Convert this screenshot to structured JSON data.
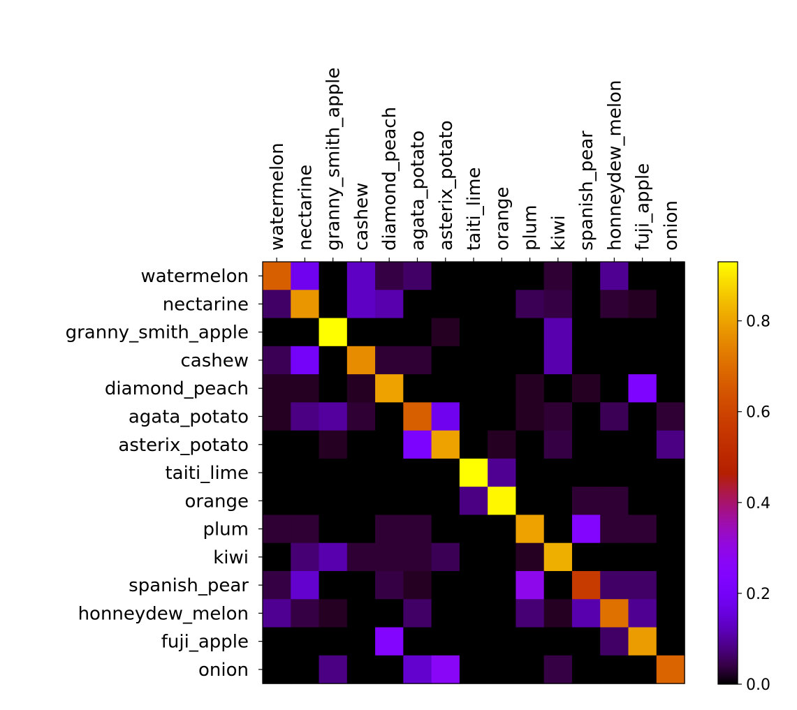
{
  "chart_data": {
    "type": "heatmap",
    "title": "",
    "xlabel": "",
    "ylabel": "",
    "x_labels": [
      "watermelon",
      "nectarine",
      "granny_smith_apple",
      "cashew",
      "diamond_peach",
      "agata_potato",
      "asterix_potato",
      "taiti_lime",
      "orange",
      "plum",
      "kiwi",
      "spanish_pear",
      "honneydew_melon",
      "fuji_apple",
      "onion"
    ],
    "y_labels": [
      "watermelon",
      "nectarine",
      "granny_smith_apple",
      "cashew",
      "diamond_peach",
      "agata_potato",
      "asterix_potato",
      "taiti_lime",
      "orange",
      "plum",
      "kiwi",
      "spanish_pear",
      "honneydew_melon",
      "fuji_apple",
      "onion"
    ],
    "x_axis_position": "top",
    "colormap": "gnuplot",
    "colorbar": {
      "min": 0.0,
      "max": 0.93,
      "ticks": [
        0.0,
        0.2,
        0.4,
        0.6,
        0.8
      ],
      "tick_labels": [
        "0.0",
        "0.2",
        "0.4",
        "0.6",
        "0.8"
      ]
    },
    "matrix": [
      [
        0.67,
        0.18,
        0.0,
        0.13,
        0.04,
        0.06,
        0.0,
        0.0,
        0.0,
        0.0,
        0.03,
        0.0,
        0.09,
        0.0,
        0.0
      ],
      [
        0.06,
        0.78,
        0.0,
        0.13,
        0.11,
        0.0,
        0.0,
        0.0,
        0.0,
        0.05,
        0.04,
        0.0,
        0.03,
        0.02,
        0.0
      ],
      [
        0.0,
        0.0,
        0.93,
        0.0,
        0.0,
        0.0,
        0.02,
        0.0,
        0.0,
        0.0,
        0.11,
        0.0,
        0.0,
        0.0,
        0.0
      ],
      [
        0.05,
        0.2,
        0.0,
        0.76,
        0.03,
        0.03,
        0.0,
        0.0,
        0.0,
        0.0,
        0.11,
        0.0,
        0.0,
        0.0,
        0.0
      ],
      [
        0.02,
        0.02,
        0.0,
        0.02,
        0.8,
        0.0,
        0.0,
        0.0,
        0.0,
        0.02,
        0.0,
        0.02,
        0.0,
        0.23,
        0.0
      ],
      [
        0.02,
        0.08,
        0.1,
        0.03,
        0.0,
        0.67,
        0.18,
        0.0,
        0.0,
        0.02,
        0.03,
        0.0,
        0.05,
        0.0,
        0.03
      ],
      [
        0.0,
        0.0,
        0.02,
        0.0,
        0.0,
        0.22,
        0.8,
        0.0,
        0.02,
        0.0,
        0.04,
        0.0,
        0.0,
        0.0,
        0.08
      ],
      [
        0.0,
        0.0,
        0.0,
        0.0,
        0.0,
        0.0,
        0.0,
        0.93,
        0.09,
        0.0,
        0.0,
        0.0,
        0.0,
        0.0,
        0.0
      ],
      [
        0.0,
        0.0,
        0.0,
        0.0,
        0.0,
        0.0,
        0.0,
        0.08,
        0.92,
        0.0,
        0.0,
        0.03,
        0.03,
        0.0,
        0.0
      ],
      [
        0.03,
        0.03,
        0.0,
        0.0,
        0.03,
        0.03,
        0.0,
        0.0,
        0.0,
        0.8,
        0.0,
        0.25,
        0.03,
        0.03,
        0.0
      ],
      [
        0.0,
        0.07,
        0.11,
        0.03,
        0.03,
        0.03,
        0.05,
        0.0,
        0.0,
        0.02,
        0.82,
        0.0,
        0.0,
        0.0,
        0.0
      ],
      [
        0.04,
        0.14,
        0.0,
        0.0,
        0.04,
        0.02,
        0.0,
        0.0,
        0.0,
        0.29,
        0.0,
        0.57,
        0.06,
        0.06,
        0.0
      ],
      [
        0.09,
        0.04,
        0.02,
        0.0,
        0.0,
        0.06,
        0.0,
        0.0,
        0.0,
        0.07,
        0.02,
        0.11,
        0.71,
        0.09,
        0.0
      ],
      [
        0.0,
        0.0,
        0.0,
        0.0,
        0.25,
        0.0,
        0.0,
        0.0,
        0.0,
        0.0,
        0.0,
        0.0,
        0.06,
        0.79,
        0.0
      ],
      [
        0.0,
        0.0,
        0.08,
        0.0,
        0.0,
        0.14,
        0.27,
        0.0,
        0.0,
        0.0,
        0.04,
        0.0,
        0.0,
        0.0,
        0.68
      ]
    ]
  }
}
